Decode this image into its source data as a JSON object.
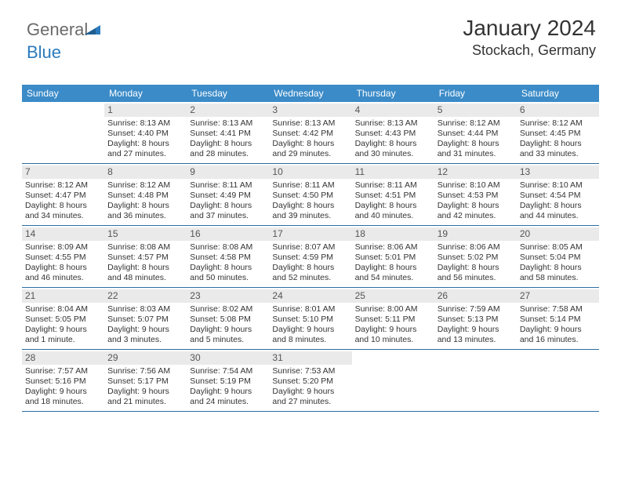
{
  "logo": {
    "part1": "General",
    "part2": "Blue"
  },
  "header": {
    "month_title": "January 2024",
    "location": "Stockach, Germany"
  },
  "colors": {
    "header_bg": "#3b8bc8",
    "header_text": "#ffffff",
    "daynum_bg": "#eaeaea",
    "week_border": "#2d6fa3",
    "text": "#333333",
    "logo_gray": "#6a6a6a",
    "logo_blue": "#2b7bbd"
  },
  "day_names": [
    "Sunday",
    "Monday",
    "Tuesday",
    "Wednesday",
    "Thursday",
    "Friday",
    "Saturday"
  ],
  "weeks": [
    [
      {
        "empty": true
      },
      {
        "n": "1",
        "sr": "Sunrise: 8:13 AM",
        "ss": "Sunset: 4:40 PM",
        "dl": "Daylight: 8 hours and 27 minutes."
      },
      {
        "n": "2",
        "sr": "Sunrise: 8:13 AM",
        "ss": "Sunset: 4:41 PM",
        "dl": "Daylight: 8 hours and 28 minutes."
      },
      {
        "n": "3",
        "sr": "Sunrise: 8:13 AM",
        "ss": "Sunset: 4:42 PM",
        "dl": "Daylight: 8 hours and 29 minutes."
      },
      {
        "n": "4",
        "sr": "Sunrise: 8:13 AM",
        "ss": "Sunset: 4:43 PM",
        "dl": "Daylight: 8 hours and 30 minutes."
      },
      {
        "n": "5",
        "sr": "Sunrise: 8:12 AM",
        "ss": "Sunset: 4:44 PM",
        "dl": "Daylight: 8 hours and 31 minutes."
      },
      {
        "n": "6",
        "sr": "Sunrise: 8:12 AM",
        "ss": "Sunset: 4:45 PM",
        "dl": "Daylight: 8 hours and 33 minutes."
      }
    ],
    [
      {
        "n": "7",
        "sr": "Sunrise: 8:12 AM",
        "ss": "Sunset: 4:47 PM",
        "dl": "Daylight: 8 hours and 34 minutes."
      },
      {
        "n": "8",
        "sr": "Sunrise: 8:12 AM",
        "ss": "Sunset: 4:48 PM",
        "dl": "Daylight: 8 hours and 36 minutes."
      },
      {
        "n": "9",
        "sr": "Sunrise: 8:11 AM",
        "ss": "Sunset: 4:49 PM",
        "dl": "Daylight: 8 hours and 37 minutes."
      },
      {
        "n": "10",
        "sr": "Sunrise: 8:11 AM",
        "ss": "Sunset: 4:50 PM",
        "dl": "Daylight: 8 hours and 39 minutes."
      },
      {
        "n": "11",
        "sr": "Sunrise: 8:11 AM",
        "ss": "Sunset: 4:51 PM",
        "dl": "Daylight: 8 hours and 40 minutes."
      },
      {
        "n": "12",
        "sr": "Sunrise: 8:10 AM",
        "ss": "Sunset: 4:53 PM",
        "dl": "Daylight: 8 hours and 42 minutes."
      },
      {
        "n": "13",
        "sr": "Sunrise: 8:10 AM",
        "ss": "Sunset: 4:54 PM",
        "dl": "Daylight: 8 hours and 44 minutes."
      }
    ],
    [
      {
        "n": "14",
        "sr": "Sunrise: 8:09 AM",
        "ss": "Sunset: 4:55 PM",
        "dl": "Daylight: 8 hours and 46 minutes."
      },
      {
        "n": "15",
        "sr": "Sunrise: 8:08 AM",
        "ss": "Sunset: 4:57 PM",
        "dl": "Daylight: 8 hours and 48 minutes."
      },
      {
        "n": "16",
        "sr": "Sunrise: 8:08 AM",
        "ss": "Sunset: 4:58 PM",
        "dl": "Daylight: 8 hours and 50 minutes."
      },
      {
        "n": "17",
        "sr": "Sunrise: 8:07 AM",
        "ss": "Sunset: 4:59 PM",
        "dl": "Daylight: 8 hours and 52 minutes."
      },
      {
        "n": "18",
        "sr": "Sunrise: 8:06 AM",
        "ss": "Sunset: 5:01 PM",
        "dl": "Daylight: 8 hours and 54 minutes."
      },
      {
        "n": "19",
        "sr": "Sunrise: 8:06 AM",
        "ss": "Sunset: 5:02 PM",
        "dl": "Daylight: 8 hours and 56 minutes."
      },
      {
        "n": "20",
        "sr": "Sunrise: 8:05 AM",
        "ss": "Sunset: 5:04 PM",
        "dl": "Daylight: 8 hours and 58 minutes."
      }
    ],
    [
      {
        "n": "21",
        "sr": "Sunrise: 8:04 AM",
        "ss": "Sunset: 5:05 PM",
        "dl": "Daylight: 9 hours and 1 minute."
      },
      {
        "n": "22",
        "sr": "Sunrise: 8:03 AM",
        "ss": "Sunset: 5:07 PM",
        "dl": "Daylight: 9 hours and 3 minutes."
      },
      {
        "n": "23",
        "sr": "Sunrise: 8:02 AM",
        "ss": "Sunset: 5:08 PM",
        "dl": "Daylight: 9 hours and 5 minutes."
      },
      {
        "n": "24",
        "sr": "Sunrise: 8:01 AM",
        "ss": "Sunset: 5:10 PM",
        "dl": "Daylight: 9 hours and 8 minutes."
      },
      {
        "n": "25",
        "sr": "Sunrise: 8:00 AM",
        "ss": "Sunset: 5:11 PM",
        "dl": "Daylight: 9 hours and 10 minutes."
      },
      {
        "n": "26",
        "sr": "Sunrise: 7:59 AM",
        "ss": "Sunset: 5:13 PM",
        "dl": "Daylight: 9 hours and 13 minutes."
      },
      {
        "n": "27",
        "sr": "Sunrise: 7:58 AM",
        "ss": "Sunset: 5:14 PM",
        "dl": "Daylight: 9 hours and 16 minutes."
      }
    ],
    [
      {
        "n": "28",
        "sr": "Sunrise: 7:57 AM",
        "ss": "Sunset: 5:16 PM",
        "dl": "Daylight: 9 hours and 18 minutes."
      },
      {
        "n": "29",
        "sr": "Sunrise: 7:56 AM",
        "ss": "Sunset: 5:17 PM",
        "dl": "Daylight: 9 hours and 21 minutes."
      },
      {
        "n": "30",
        "sr": "Sunrise: 7:54 AM",
        "ss": "Sunset: 5:19 PM",
        "dl": "Daylight: 9 hours and 24 minutes."
      },
      {
        "n": "31",
        "sr": "Sunrise: 7:53 AM",
        "ss": "Sunset: 5:20 PM",
        "dl": "Daylight: 9 hours and 27 minutes."
      },
      {
        "empty": true
      },
      {
        "empty": true
      },
      {
        "empty": true
      }
    ]
  ]
}
